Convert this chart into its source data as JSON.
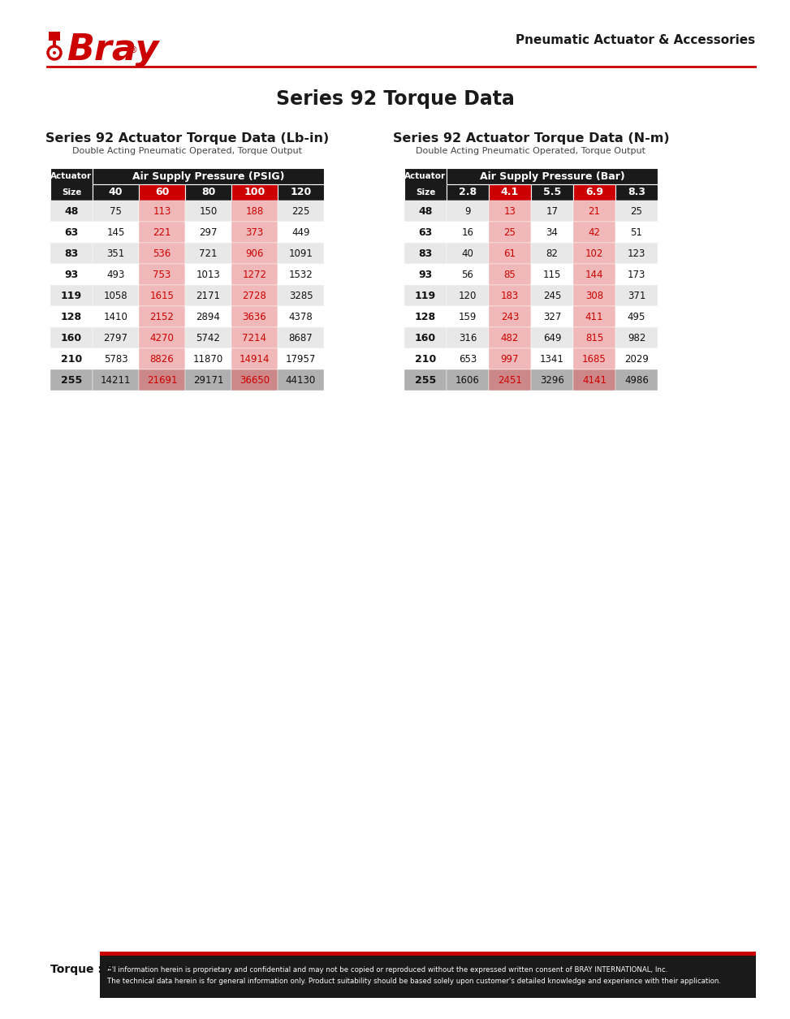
{
  "page_title": "Series 92 Torque Data",
  "header_right": "Pneumatic Actuator & Accessories",
  "page_label": "Torque : 5",
  "footer_text": "All information herein is proprietary and confidential and may not be copied or reproduced without the expressed written consent of BRAY INTERNATIONAL, Inc.\nThe technical data herein is for general information only. Product suitability should be based solely upon customer's detailed knowledge and experience with their application.",
  "table1_title": "Series 92 Actuator Torque Data (Lb-in)",
  "table1_subtitle": "Double Acting Pneumatic Operated, Torque Output",
  "table1_header_label": "Air Supply Pressure (PSIG)",
  "table1_col_header": [
    "40",
    "60",
    "80",
    "100",
    "120"
  ],
  "table1_col_colors": [
    "#1a1a1a",
    "#cc0000",
    "#1a1a1a",
    "#cc0000",
    "#1a1a1a"
  ],
  "table1_rows": [
    [
      "48",
      "75",
      "113",
      "150",
      "188",
      "225"
    ],
    [
      "63",
      "145",
      "221",
      "297",
      "373",
      "449"
    ],
    [
      "83",
      "351",
      "536",
      "721",
      "906",
      "1091"
    ],
    [
      "93",
      "493",
      "753",
      "1013",
      "1272",
      "1532"
    ],
    [
      "119",
      "1058",
      "1615",
      "2171",
      "2728",
      "3285"
    ],
    [
      "128",
      "1410",
      "2152",
      "2894",
      "3636",
      "4378"
    ],
    [
      "160",
      "2797",
      "4270",
      "5742",
      "7214",
      "8687"
    ],
    [
      "210",
      "5783",
      "8826",
      "11870",
      "14914",
      "17957"
    ],
    [
      "255",
      "14211",
      "21691",
      "29171",
      "36650",
      "44130"
    ]
  ],
  "table2_title": "Series 92 Actuator Torque Data (N-m)",
  "table2_subtitle": "Double Acting Pneumatic Operated, Torque Output",
  "table2_header_label": "Air Supply Pressure (Bar)",
  "table2_col_header": [
    "2.8",
    "4.1",
    "5.5",
    "6.9",
    "8.3"
  ],
  "table2_col_colors": [
    "#1a1a1a",
    "#cc0000",
    "#1a1a1a",
    "#cc0000",
    "#1a1a1a"
  ],
  "table2_rows": [
    [
      "48",
      "9",
      "13",
      "17",
      "21",
      "25"
    ],
    [
      "63",
      "16",
      "25",
      "34",
      "42",
      "51"
    ],
    [
      "83",
      "40",
      "61",
      "82",
      "102",
      "123"
    ],
    [
      "93",
      "56",
      "85",
      "115",
      "144",
      "173"
    ],
    [
      "119",
      "120",
      "183",
      "245",
      "308",
      "371"
    ],
    [
      "128",
      "159",
      "243",
      "327",
      "411",
      "495"
    ],
    [
      "160",
      "316",
      "482",
      "649",
      "815",
      "982"
    ],
    [
      "210",
      "653",
      "997",
      "1341",
      "1685",
      "2029"
    ],
    [
      "255",
      "1606",
      "2451",
      "3296",
      "4141",
      "4986"
    ]
  ],
  "row_bg_light": "#e8e8e8",
  "row_bg_white": "#ffffff",
  "row_bg_dark": "#b0b0b0",
  "header_bg": "#1a1a1a",
  "col_highlight_light": "#f0b8b8",
  "col_highlight_dark": "#cc8888",
  "bray_red": "#cc0000",
  "line_red": "#cc0000"
}
